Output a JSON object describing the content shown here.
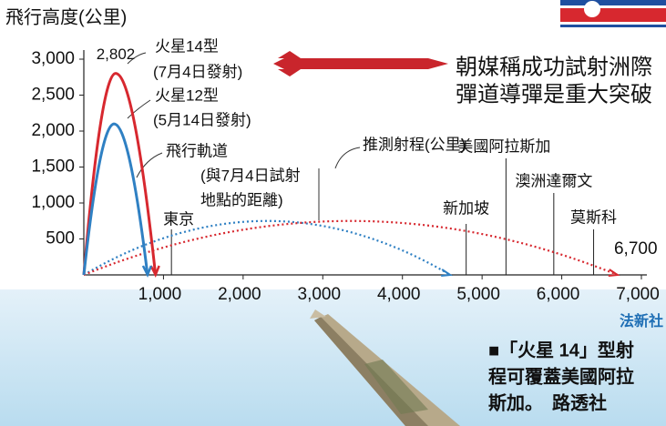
{
  "chart_data": {
    "type": "trajectory",
    "y_title": "飛行高度(公里)",
    "headline": [
      "朝媒稱成功試射洲際",
      "彈道導彈是重大突破"
    ],
    "xlim": [
      0,
      7000
    ],
    "ylim": [
      0,
      3000
    ],
    "xticks": [
      {
        "value": 1000,
        "label": "1,000"
      },
      {
        "value": 2000,
        "label": "2,000"
      },
      {
        "value": 3000,
        "label": "3,000"
      },
      {
        "value": 4000,
        "label": "4,000"
      },
      {
        "value": 5000,
        "label": "5,000"
      },
      {
        "value": 6000,
        "label": "6,000"
      },
      {
        "value": 7000,
        "label": "7,000"
      }
    ],
    "yticks": [
      500,
      {
        "value": 1000,
        "label": "1,000"
      },
      {
        "value": 1500,
        "label": "1,500"
      },
      {
        "value": 2000,
        "label": "2,000"
      },
      {
        "value": 2500,
        "label": "2,500"
      },
      {
        "value": 3000,
        "label": "3,000"
      }
    ],
    "series": [
      {
        "name": "火星14型",
        "note": "(7月4日發射)",
        "color": "#d7282f",
        "x": [
          0,
          400,
          900
        ],
        "values": [
          0,
          2802,
          0
        ],
        "value_labels": [
          null,
          "2,802",
          null
        ]
      },
      {
        "name": "火星12型",
        "note": "(5月14日發射)",
        "color": "#2f80c3",
        "x": [
          0,
          380,
          800
        ],
        "values": [
          0,
          2100,
          0
        ]
      }
    ],
    "path_label": [
      "飛行軌道",
      "(與7月4日試射",
      "地點的距離)"
    ],
    "range_label": "推測射程(公里)",
    "ranges": [
      {
        "color": "#2f80c3",
        "value": 4600
      },
      {
        "color": "#d7282f",
        "value": 6700,
        "value_label": "6,700"
      }
    ],
    "cities": {
      "names": [
        "東京",
        "新加坡",
        "美國阿拉斯加",
        "澳洲達爾文",
        "莫斯科"
      ],
      "x": [
        1100,
        4800,
        5300,
        5900,
        6400
      ]
    },
    "source": "法新社"
  },
  "caption": [
    "■「火星 14」型射",
    "程可覆蓋美國阿拉",
    "斯加。　路透社"
  ]
}
